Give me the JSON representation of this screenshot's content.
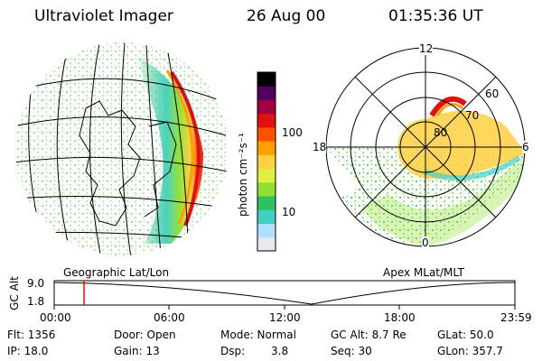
{
  "header": {
    "title": "Ultraviolet Imager",
    "date": "26 Aug 00",
    "time": "01:35:36 UT"
  },
  "colorbar": {
    "unit_label": "photon cm⁻²s⁻¹",
    "ticks": [
      "100",
      "10"
    ],
    "palette": [
      "#e8e8f0",
      "#b0e0ff",
      "#40d0c0",
      "#30c060",
      "#90e030",
      "#e0f040",
      "#ffd040",
      "#ffa000",
      "#ff5000",
      "#e01010",
      "#a00040",
      "#500060",
      "#000000"
    ]
  },
  "polar": {
    "mlt_labels": {
      "top": "12",
      "left": "18",
      "right": "6",
      "bottom": "0"
    },
    "lat_labels": [
      "80",
      "70",
      "60"
    ]
  },
  "panel_labels": {
    "left": "Geographic Lat/Lon",
    "right": "Apex MLat/MLT"
  },
  "timeline": {
    "axis_label": "GC Alt",
    "y_ticks": [
      "9.0",
      "1.8"
    ],
    "x_ticks": [
      "00:00",
      "06:00",
      "12:00",
      "18:00",
      "23:59"
    ],
    "marker_color": "#ff0000"
  },
  "info": {
    "flt": "Flt: 1356",
    "ip": "IP: 18.0",
    "door": "Door: Open",
    "gain": "Gain: 13",
    "mode": "Mode: Normal",
    "dsp_label": "Dsp:",
    "dsp_value": "3.8",
    "gcalt": "GC Alt: 8.7 Re",
    "seq": "Seq: 30",
    "glat": "GLat: 50.0",
    "glon": "GLon: 357.7"
  }
}
